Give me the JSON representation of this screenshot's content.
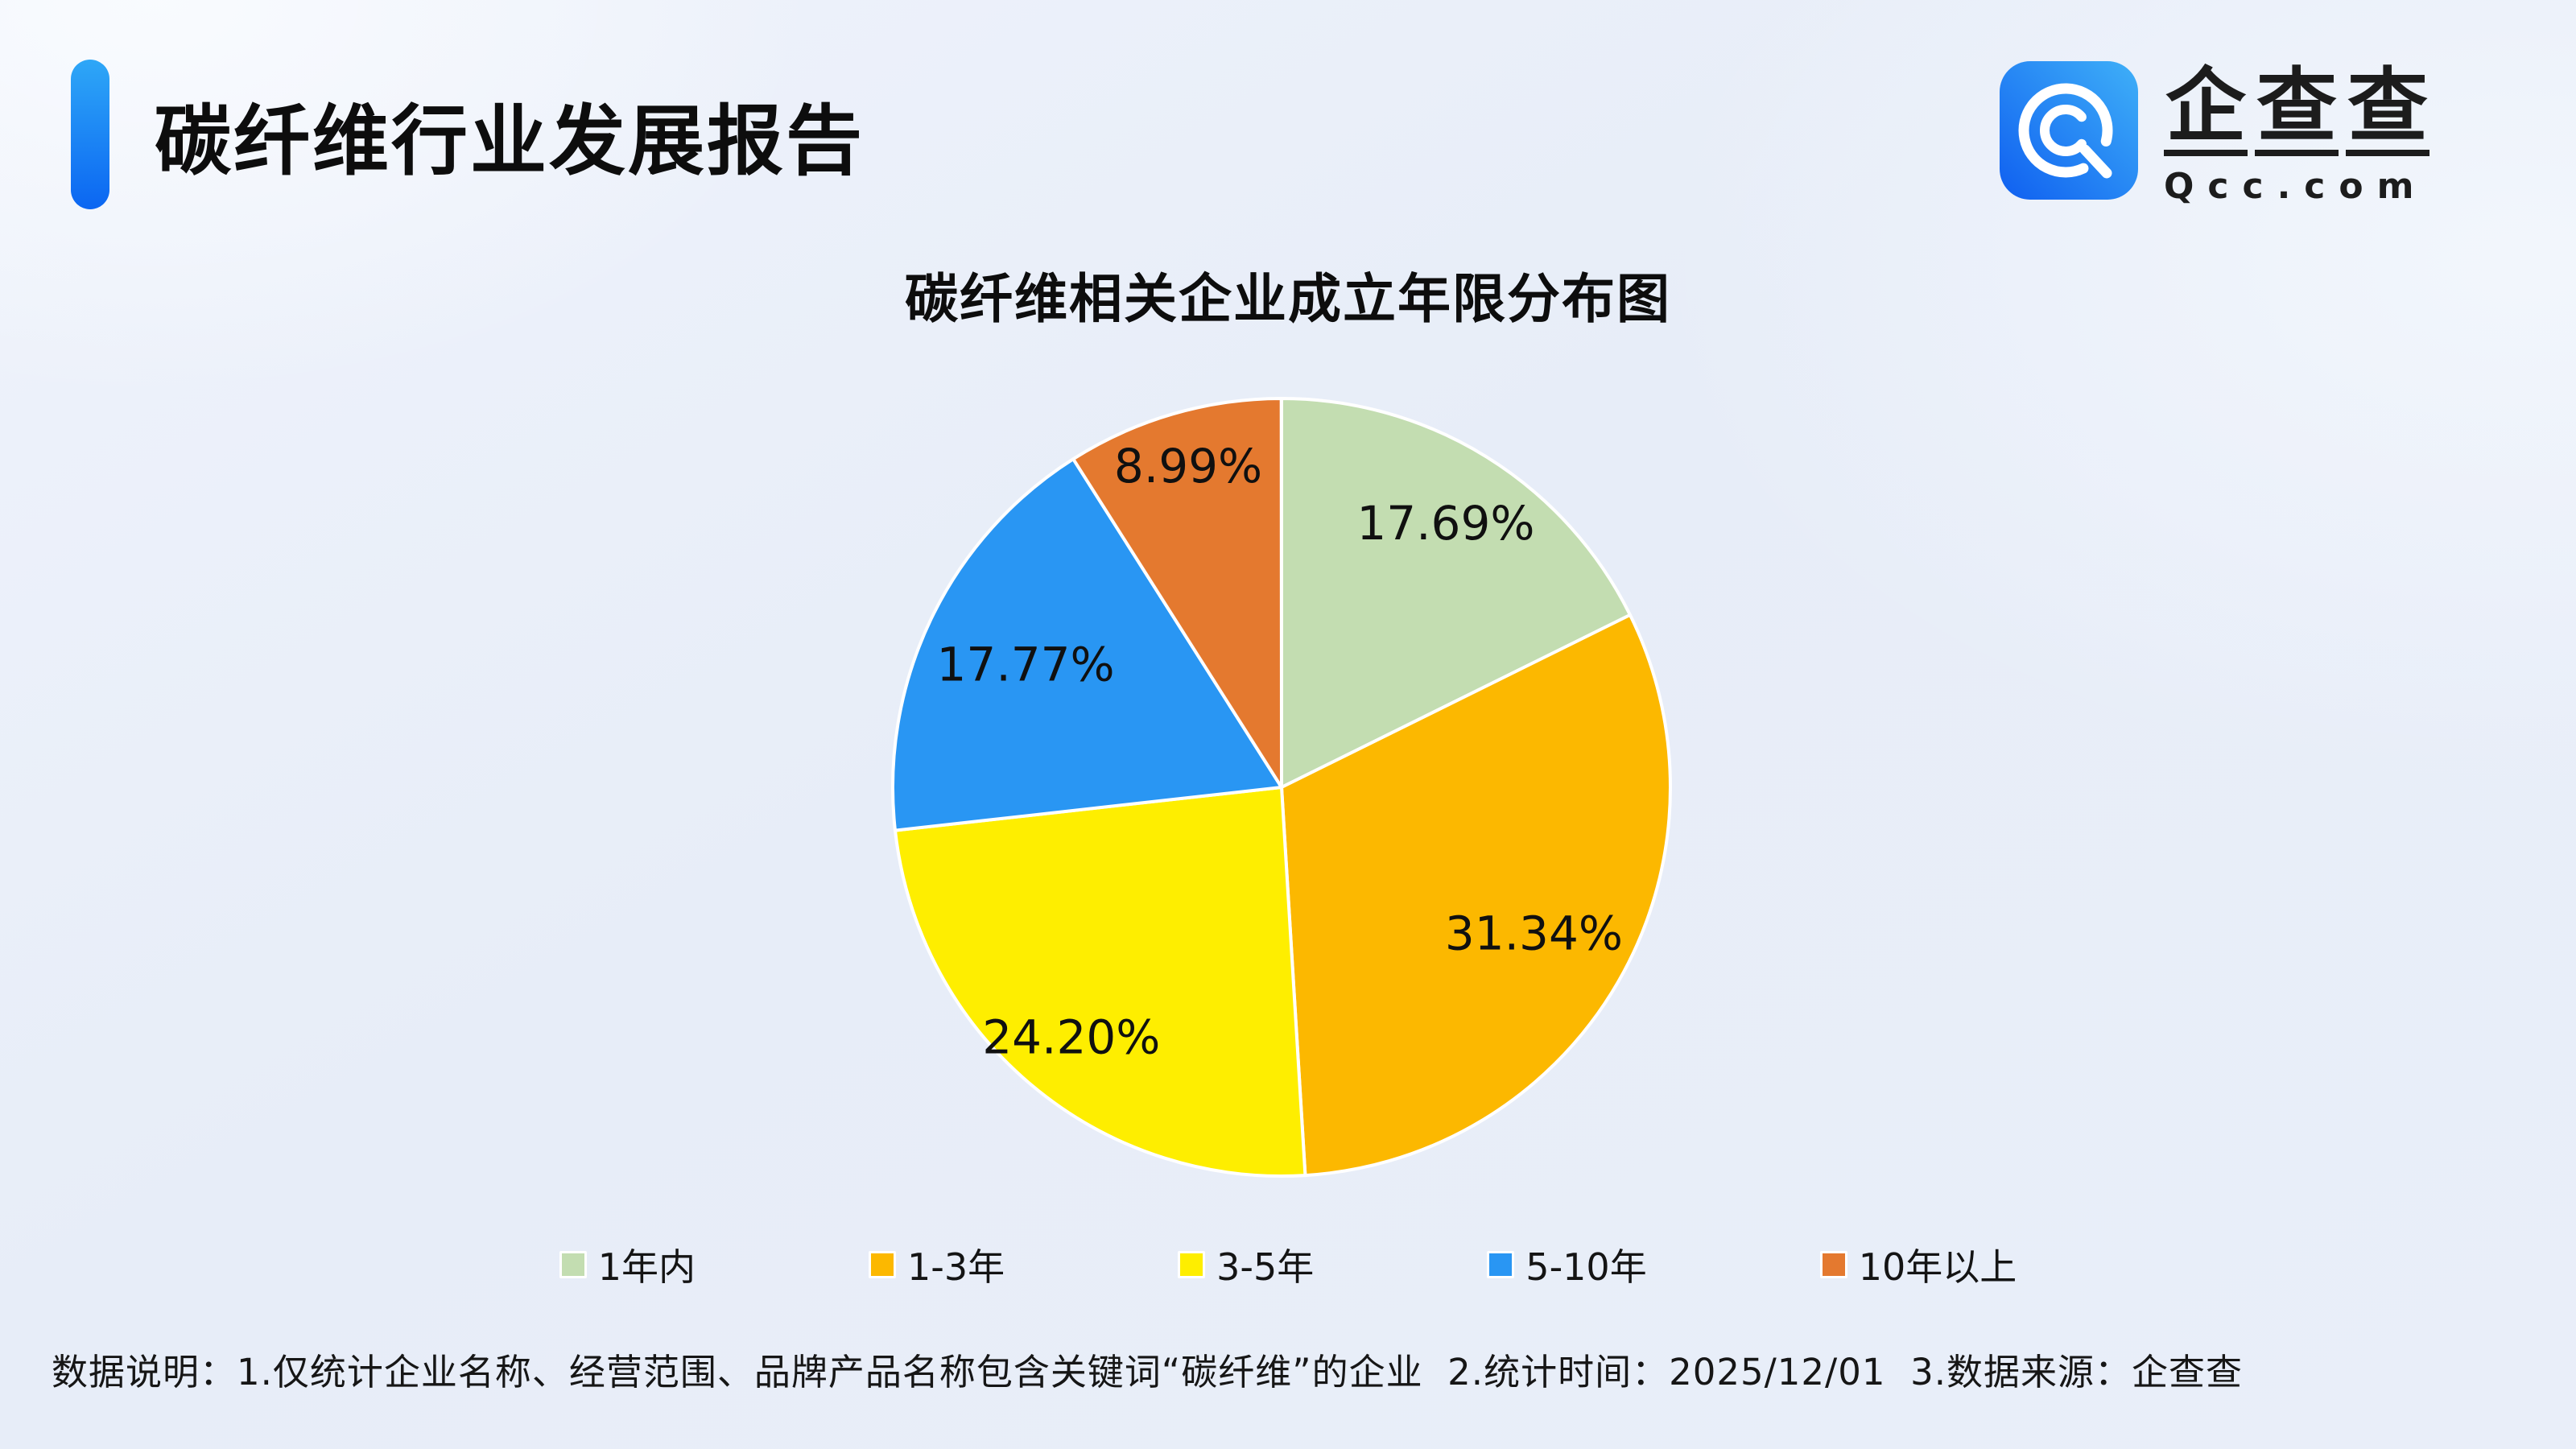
{
  "header": {
    "title": "碳纤维行业发展报告"
  },
  "logo": {
    "brand_name": "企查查",
    "brand_domain": "Qcc.com",
    "icon": "qcc-swirl-q-icon",
    "icon_gradient": [
      "#0f5ff0",
      "#3fb0f8"
    ]
  },
  "chart_data": {
    "type": "pie",
    "title": "碳纤维相关企业成立年限分布图",
    "categories": [
      "1年内",
      "1-3年",
      "3-5年",
      "5-10年",
      "10年以上"
    ],
    "values": [
      17.69,
      31.34,
      24.2,
      17.77,
      8.99
    ],
    "labels": [
      "17.69%",
      "31.34%",
      "24.20%",
      "17.77%",
      "8.99%"
    ],
    "colors": [
      "#c3ddb1",
      "#fcb800",
      "#feee00",
      "#2996f3",
      "#e4792f"
    ],
    "slice_border_color": "#ffffff",
    "start_angle": "12-oclock",
    "direction": "clockwise",
    "label_position": "inside",
    "legend_position": "bottom"
  },
  "footer": {
    "note": "数据说明：1.仅统计企业名称、经营范围、品牌产品名称包含关键词“碳纤维”的企业  2.统计时间：2025/12/01  3.数据来源：企查查"
  },
  "theme": {
    "accent_blue": "#1677f0",
    "background": "#e9eef8",
    "text": "#111111"
  }
}
